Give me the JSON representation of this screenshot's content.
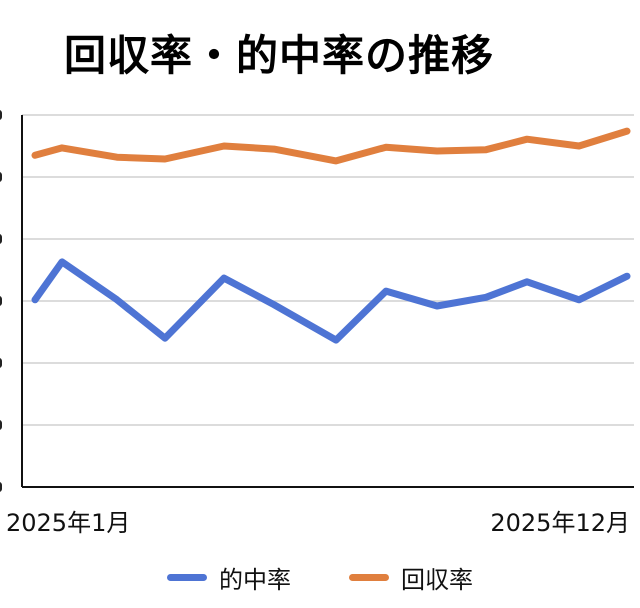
{
  "title": "回収率・的中率の推移",
  "x_axis": {
    "start_label": "2025年1月",
    "end_label": "2025年12月"
  },
  "legend": [
    {
      "label": "的中率",
      "color": "#4E74D4"
    },
    {
      "label": "回収率",
      "color": "#E07F3E"
    }
  ],
  "colors": {
    "hit_rate": "#4E74D4",
    "return_rate": "#E07F3E",
    "gridline": "#D0D0D0",
    "axis": "#111111"
  },
  "chart_data": {
    "type": "line",
    "title": "回収率・的中率の推移",
    "xlabel": "",
    "ylabel": "",
    "x_tick_labels": [
      "2025年1月",
      "2025年12月"
    ],
    "y_tick_labels_visible": false,
    "y_units_note": "y-axis labels clipped; values in gridline units (0 = x-axis, 6 = top gridline)",
    "ylim": [
      0,
      6
    ],
    "grid": true,
    "legend_position": "bottom",
    "x": [
      1,
      2,
      3,
      4,
      5,
      6,
      7,
      8,
      9,
      10,
      11,
      12,
      13
    ],
    "series": [
      {
        "name": "的中率",
        "color": "#4E74D4",
        "values": [
          3.02,
          3.63,
          3.02,
          2.4,
          3.37,
          2.94,
          2.37,
          3.16,
          2.92,
          3.06,
          3.31,
          3.02,
          3.4
        ]
      },
      {
        "name": "回収率",
        "color": "#E07F3E",
        "values": [
          5.35,
          5.47,
          5.32,
          5.29,
          5.5,
          5.45,
          5.26,
          5.48,
          5.42,
          5.44,
          5.61,
          5.5,
          5.74
        ]
      }
    ]
  }
}
